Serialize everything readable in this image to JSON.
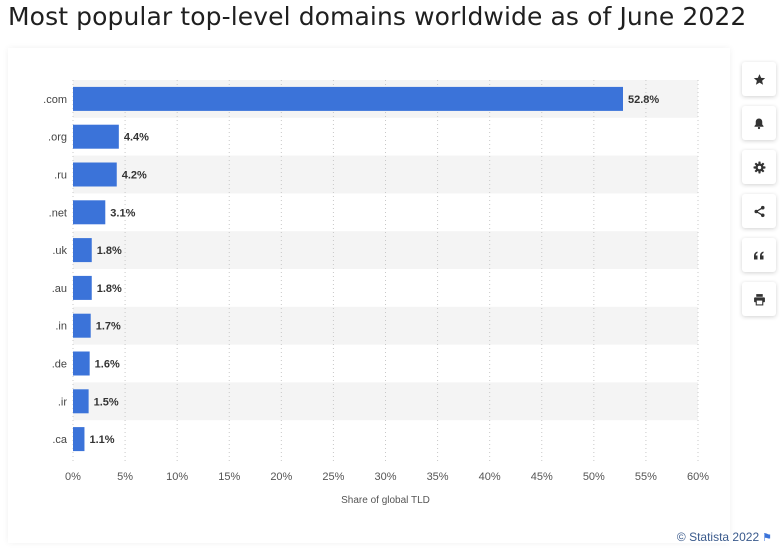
{
  "page": {
    "title": "Most popular top-level domains worldwide as of June 2022"
  },
  "credit": {
    "text": "© Statista 2022",
    "flag_icon": "flag-icon"
  },
  "toolbar": {
    "buttons": [
      {
        "icon": "star-icon",
        "action": "favorite"
      },
      {
        "icon": "bell-icon",
        "action": "notify"
      },
      {
        "icon": "gear-icon",
        "action": "settings"
      },
      {
        "icon": "share-icon",
        "action": "share"
      },
      {
        "icon": "quote-icon",
        "action": "cite"
      },
      {
        "icon": "print-icon",
        "action": "print"
      }
    ]
  },
  "colors": {
    "bar": "#3b73d9",
    "band": "#f4f4f4",
    "grid": "#c8c8c8",
    "text": "#333333"
  },
  "chart_data": {
    "type": "bar",
    "orientation": "horizontal",
    "title": "Most popular top-level domains worldwide as of June 2022",
    "xlabel": "Share of global TLD",
    "ylabel": "",
    "categories": [
      ".com",
      ".org",
      ".ru",
      ".net",
      ".uk",
      ".au",
      ".in",
      ".de",
      ".ir",
      ".ca"
    ],
    "values": [
      52.8,
      4.4,
      4.2,
      3.1,
      1.8,
      1.8,
      1.7,
      1.6,
      1.5,
      1.1
    ],
    "value_labels": [
      "52.8%",
      "4.4%",
      "4.2%",
      "3.1%",
      "1.8%",
      "1.8%",
      "1.7%",
      "1.6%",
      "1.5%",
      "1.1%"
    ],
    "xlim": [
      0,
      60
    ],
    "xticks": [
      0,
      5,
      10,
      15,
      20,
      25,
      30,
      35,
      40,
      45,
      50,
      55,
      60
    ],
    "xtick_labels": [
      "0%",
      "5%",
      "10%",
      "15%",
      "20%",
      "25%",
      "30%",
      "35%",
      "40%",
      "45%",
      "50%",
      "55%",
      "60%"
    ],
    "grid": true,
    "legend": "none"
  }
}
